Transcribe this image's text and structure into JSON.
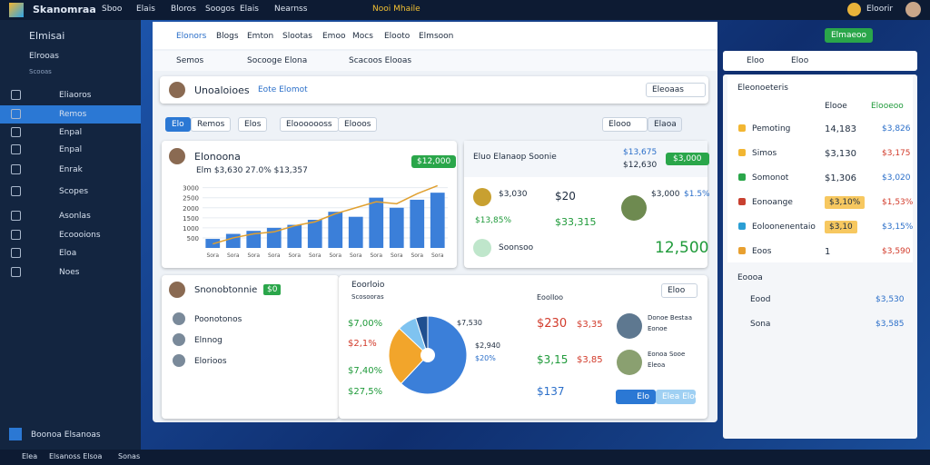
{
  "topbar": {
    "brand": "Skanomraa",
    "menu": [
      "Sboo",
      "Elais",
      "Bloros",
      "Soogos",
      "Elais",
      "Nearnss"
    ],
    "promo": "Nooi Mhaile",
    "user": "Eloorir"
  },
  "sidebar": {
    "title": "Elmisai",
    "section": "Elrooas",
    "subtitle": "Scooas",
    "items": [
      "Eliaoros",
      "Remos",
      "Enpal",
      "Enpal",
      "Enrak",
      "Scopes",
      "Asonlas",
      "Ecoooions",
      "Eloa",
      "Noes"
    ],
    "footer": "Boonoa Elsanoas"
  },
  "bottombar": [
    "Elea",
    "Elsanoss Elsoa",
    "Sonas"
  ],
  "toolbar": {
    "tabs": [
      "Elonors",
      "Blogs",
      "Emton",
      "Slootas",
      "Emoo",
      "Mocs",
      "Elooto",
      "Elmsoon"
    ],
    "action": "Elmaeoo",
    "subtabs": [
      "Semos",
      "Socooge Elona",
      "Scacoos Elooas"
    ],
    "right": [
      "Eloo",
      "Eloo"
    ]
  },
  "header": {
    "title": "Unoaloioes",
    "link": "Eote Elomot",
    "search": "Eleoaas"
  },
  "filters": {
    "buttons": [
      "Elo",
      "Remos",
      "Elos",
      "Elooooooss",
      "Elooos"
    ],
    "search": "Elooo",
    "select": "Elaoa"
  },
  "bar_card": {
    "title": "Elonoona",
    "subtitle": "Elm $3,630  27.0%  $13,357",
    "badge": "$12,000",
    "chart": {
      "values": [
        450,
        700,
        850,
        1000,
        1150,
        1400,
        1800,
        1550,
        2500,
        2000,
        2400,
        2750
      ],
      "line_values": [
        200,
        500,
        700,
        800,
        1100,
        1300,
        1700,
        2000,
        2300,
        2200,
        2700,
        3100
      ],
      "categories": [
        "Sora",
        "Sora",
        "Sora",
        "Sora",
        "Sora",
        "Sora",
        "Sora",
        "Sora",
        "Sora",
        "Sora",
        "Sora",
        "Sora"
      ],
      "ylim": [
        0,
        3300
      ],
      "yticks": [
        500,
        1000,
        1500,
        2000,
        2500,
        3000
      ],
      "color": "#3b7fd9",
      "line_color": "#e0a030"
    }
  },
  "stat_card": {
    "title": "Eluo Elanaop Soonie",
    "figures": [
      "$13,675",
      "$12,630"
    ],
    "button": "$3,000",
    "items": [
      [
        "$3,030",
        "$20",
        "$13,85%",
        "$33,315"
      ],
      [
        "$3,000",
        "$1.5%"
      ]
    ],
    "footer": "Soonsoo",
    "total": "12,500"
  },
  "list_card": {
    "title": "Snonobtonnie",
    "badge": "$0",
    "items": [
      "Poonotonos",
      "Elnnog",
      "Elorioos"
    ]
  },
  "pie_card": {
    "title": "Eoorloio",
    "subtitle": "Scosooras",
    "left": [
      "$7,00%",
      "$2,1%",
      "$7,40%",
      "$27,5%"
    ],
    "pie_label": "$7,530",
    "side": [
      "$2,940",
      "$20%"
    ],
    "search": "Eoolloo",
    "search2": "Eloo",
    "amounts": [
      "$230",
      "$3,35",
      "$3,15",
      "$3,85",
      "$137"
    ],
    "people": [
      [
        "Donoe Bestaa",
        "Eonoe"
      ],
      [
        "Eonoa Sooe",
        "Eleoa"
      ]
    ],
    "buttons": [
      "Elo",
      "Elea Eloo"
    ],
    "chart": {
      "values": [
        62,
        25,
        8,
        5
      ],
      "colors": [
        "#3b7fd9",
        "#f2a52b",
        "#7fc3f0",
        "#1f4f90"
      ]
    }
  },
  "right_panel": {
    "title": "Eleonoeteris",
    "header": [
      "Elooe",
      "Elooeoo"
    ],
    "rows": [
      [
        "Pemoting",
        "14,183",
        "$3,826"
      ],
      [
        "Simos",
        "$3,130",
        "$3,175"
      ],
      [
        "Somonot",
        "$1,306",
        "$3,020"
      ],
      [
        "Eonoange",
        "$3,10%",
        "$1,53%"
      ],
      [
        "Eoloonenentaio",
        "$3,10",
        "$3,15%"
      ],
      [
        "Eoos",
        "1",
        "$3,590"
      ]
    ],
    "section": "Eoooa",
    "extra": [
      [
        "Eood",
        "$3,530"
      ],
      [
        "Sona",
        "$3,585"
      ]
    ],
    "top": [
      "Eloo",
      "Eloo"
    ]
  }
}
